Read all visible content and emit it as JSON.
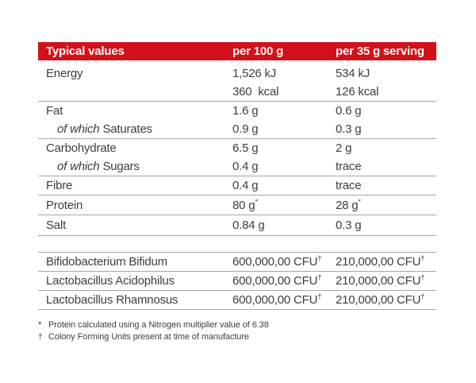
{
  "colors": {
    "header_bg": "#d2121a",
    "header_text": "#ffffff",
    "body_text": "#3d3d3d",
    "divider": "#a6a6a6"
  },
  "table": {
    "header": {
      "col_label": "Typical values",
      "col_per100": "per 100 g",
      "col_per35": "per 35 g serving"
    },
    "rows": [
      {
        "label": "Energy",
        "per100": "1,526 kJ",
        "per35": "534 kJ"
      },
      {
        "label": "",
        "per100": "360  kcal",
        "per35": "126 kcal"
      },
      {
        "label": "Fat",
        "per100": "1.6 g",
        "per35": "0.6 g"
      },
      {
        "label_prefix": "of which",
        "label": "Saturates",
        "per100": "0.9 g",
        "per35": "0.3 g"
      },
      {
        "label": "Carbohydrate",
        "per100": "6.5 g",
        "per35": "2 g"
      },
      {
        "label_prefix": "of which",
        "label": "Sugars",
        "per100": "0.4 g",
        "per35": "trace"
      },
      {
        "label": "Fibre",
        "per100": "0.4 g",
        "per35": "trace"
      },
      {
        "label": "Protein",
        "per100": "80 g",
        "per100_sup": "*",
        "per35": "28 g",
        "per35_sup": "*"
      },
      {
        "label": "Salt",
        "per100": "0.84 g",
        "per35": "0.3 g"
      }
    ],
    "probiotic_rows": [
      {
        "label": "Bifidobacterium Bifidum",
        "per100": "600,000,00 CFU",
        "per100_sup": "†",
        "per35": "210,000,00 CFU",
        "per35_sup": "†"
      },
      {
        "label": "Lactobacillus Acidophilus",
        "per100": "600,000,00 CFU",
        "per100_sup": "†",
        "per35": "210,000,00 CFU",
        "per35_sup": "†"
      },
      {
        "label": "Lactobacillus Rhamnosus",
        "per100": "600,000,00 CFU",
        "per100_sup": "†",
        "per35": "210,000,00 CFU",
        "per35_sup": "†"
      }
    ]
  },
  "footnotes": [
    {
      "marker": "*",
      "text": "Protein calculated using a Nitrogen multiplier value of 6.38"
    },
    {
      "marker": "†",
      "text": "Colony Forming Units present at time of manufacture"
    }
  ]
}
